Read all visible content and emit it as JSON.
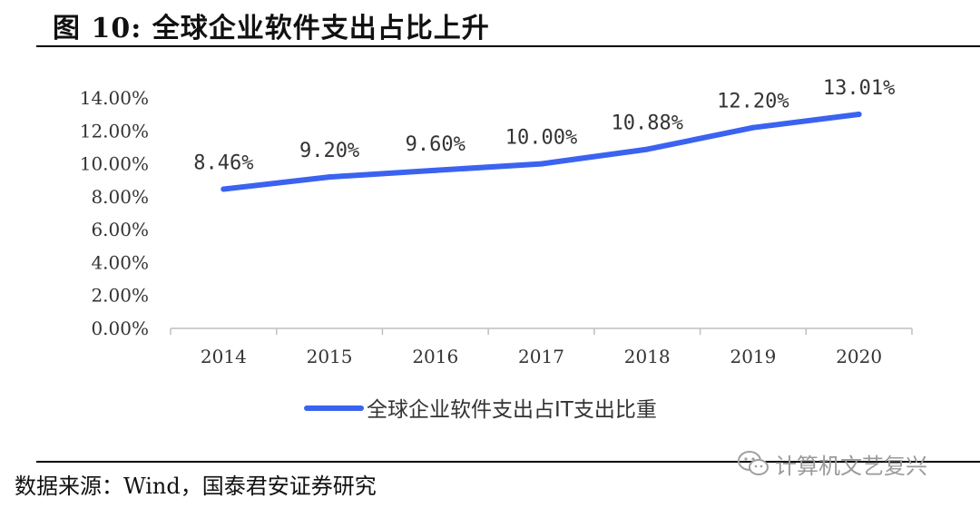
{
  "header": {
    "title": "图 10:  全球企业软件支出占比上升"
  },
  "footer": {
    "source": "数据来源：Wind，国泰君安证券研究",
    "watermark": "计算机文艺复兴",
    "watermark_icon": "wechat-icon"
  },
  "colors": {
    "line": "#3b63f0",
    "axis": "#bfbfbf",
    "text": "#333333"
  },
  "chart_data": {
    "type": "line",
    "title": "",
    "xlabel": "",
    "ylabel": "",
    "categories": [
      "2014",
      "2015",
      "2016",
      "2017",
      "2018",
      "2019",
      "2020"
    ],
    "series": [
      {
        "name": "全球企业软件支出占IT支出比重",
        "values": [
          8.46,
          9.2,
          9.6,
          10.0,
          10.88,
          12.2,
          13.01
        ],
        "data_labels": [
          "8.46%",
          "9.20%",
          "9.60%",
          "10.00%",
          "10.88%",
          "12.20%",
          "13.01%"
        ]
      }
    ],
    "y_ticks": [
      "0.00%",
      "2.00%",
      "4.00%",
      "6.00%",
      "8.00%",
      "10.00%",
      "12.00%",
      "14.00%"
    ],
    "ylim": [
      0,
      14
    ],
    "grid": false,
    "legend_position": "bottom"
  }
}
